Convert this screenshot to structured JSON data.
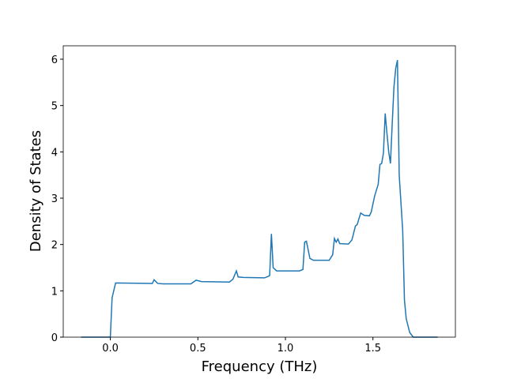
{
  "chart_data": {
    "type": "line",
    "x_label": "Frequency (THz)",
    "y_label": "Density of States",
    "xlim": [
      -0.269,
      1.971
    ],
    "ylim": [
      0,
      6.29
    ],
    "xticks": [
      {
        "value": 0,
        "label": "0.0"
      },
      0.5,
      {
        "value": 1,
        "label": "1.0"
      },
      1.5
    ],
    "yticks": [
      0,
      1,
      2,
      3,
      4,
      5,
      6
    ],
    "series": [
      {
        "color": "#1f77b4",
        "x": [
          -0.167,
          0.0,
          0.01,
          0.03,
          0.24,
          0.25,
          0.27,
          0.3,
          0.46,
          0.49,
          0.52,
          0.68,
          0.7,
          0.72,
          0.73,
          0.76,
          0.88,
          0.9,
          0.91,
          0.92,
          0.93,
          0.95,
          1.08,
          1.1,
          1.11,
          1.12,
          1.14,
          1.16,
          1.25,
          1.27,
          1.28,
          1.29,
          1.3,
          1.31,
          1.36,
          1.38,
          1.4,
          1.41,
          1.43,
          1.45,
          1.48,
          1.49,
          1.51,
          1.53,
          1.54,
          1.55,
          1.56,
          1.57,
          1.58,
          1.59,
          1.6,
          1.61,
          1.62,
          1.63,
          1.64,
          1.65,
          1.67,
          1.68,
          1.69,
          1.71,
          1.73,
          1.87
        ],
        "values": [
          0,
          0,
          0.85,
          1.17,
          1.16,
          1.24,
          1.16,
          1.15,
          1.15,
          1.23,
          1.2,
          1.19,
          1.25,
          1.43,
          1.3,
          1.29,
          1.28,
          1.31,
          1.33,
          2.23,
          1.5,
          1.43,
          1.43,
          1.46,
          2.05,
          2.07,
          1.7,
          1.66,
          1.66,
          1.78,
          2.13,
          2.05,
          2.12,
          2.02,
          2.01,
          2.1,
          2.4,
          2.43,
          2.68,
          2.63,
          2.62,
          2.7,
          3.05,
          3.3,
          3.73,
          3.75,
          3.98,
          4.83,
          4.4,
          4.0,
          3.75,
          4.6,
          5.4,
          5.8,
          5.98,
          3.5,
          2.3,
          0.8,
          0.4,
          0.1,
          0,
          0
        ]
      }
    ]
  }
}
